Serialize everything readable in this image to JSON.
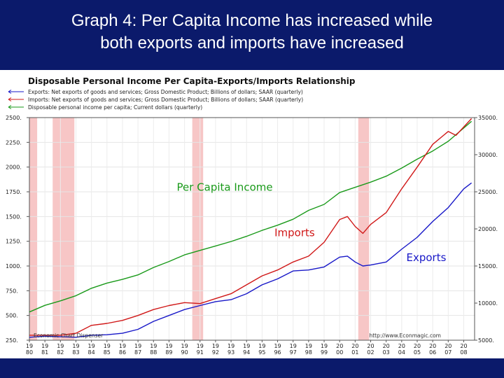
{
  "slide": {
    "title_line1": "Graph 4:  Per Capita Income has increased while",
    "title_line2": "both exports and imports have increased"
  },
  "chart_data": {
    "type": "line",
    "title": "Disposable Personal Income Per Capita-Exports/Imports Relationship",
    "legend": [
      "Exports: Net exports of goods and services; Gross Domestic Product; Billions of dollars; SAAR (quarterly)",
      "Imports: Net exports of goods and services; Gross Domestic Product; Billions of dollars; SAAR (quarterly)",
      "Disposable personal income per capita; Current dollars (quarterly)"
    ],
    "left_axis": {
      "ylim": [
        250,
        2500
      ],
      "ticks": [
        "250.",
        "500.",
        "750.",
        "1000.",
        "1250.",
        "1500.",
        "1750.",
        "2000.",
        "2250.",
        "2500."
      ]
    },
    "right_axis": {
      "ylim": [
        5000,
        35000
      ],
      "ticks": [
        "5000.",
        "10000.",
        "15000.",
        "20000.",
        "25000.",
        "30000.",
        "35000."
      ]
    },
    "x_ticks": [
      {
        "top": "19",
        "bottom": "80"
      },
      {
        "top": "19",
        "bottom": "81"
      },
      {
        "top": "19",
        "bottom": "82"
      },
      {
        "top": "19",
        "bottom": "83"
      },
      {
        "top": "19",
        "bottom": "84"
      },
      {
        "top": "19",
        "bottom": "85"
      },
      {
        "top": "19",
        "bottom": "86"
      },
      {
        "top": "19",
        "bottom": "87"
      },
      {
        "top": "19",
        "bottom": "88"
      },
      {
        "top": "19",
        "bottom": "89"
      },
      {
        "top": "19",
        "bottom": "90"
      },
      {
        "top": "19",
        "bottom": "91"
      },
      {
        "top": "19",
        "bottom": "92"
      },
      {
        "top": "19",
        "bottom": "93"
      },
      {
        "top": "19",
        "bottom": "94"
      },
      {
        "top": "19",
        "bottom": "95"
      },
      {
        "top": "19",
        "bottom": "96"
      },
      {
        "top": "19",
        "bottom": "97"
      },
      {
        "top": "19",
        "bottom": "98"
      },
      {
        "top": "19",
        "bottom": "99"
      },
      {
        "top": "20",
        "bottom": "00"
      },
      {
        "top": "20",
        "bottom": "01"
      },
      {
        "top": "20",
        "bottom": "02"
      },
      {
        "top": "20",
        "bottom": "03"
      },
      {
        "top": "20",
        "bottom": "04"
      },
      {
        "top": "20",
        "bottom": "05"
      },
      {
        "top": "20",
        "bottom": "06"
      },
      {
        "top": "20",
        "bottom": "07"
      },
      {
        "top": "20",
        "bottom": "08"
      }
    ],
    "x_range": [
      1980,
      2008.7
    ],
    "recessions": [
      [
        1980.0,
        1980.5
      ],
      [
        1981.5,
        1982.9
      ],
      [
        1990.5,
        1991.2
      ],
      [
        2001.2,
        2001.9
      ]
    ],
    "series": [
      {
        "label": "Per Capita Income",
        "axis": "right",
        "color": "#1a9a1a",
        "x": [
          1980,
          1981,
          1982,
          1983,
          1984,
          1985,
          1986,
          1987,
          1988,
          1989,
          1990,
          1991,
          1992,
          1993,
          1994,
          1995,
          1996,
          1997,
          1998,
          1999,
          2000,
          2001,
          2002,
          2003,
          2004,
          2005,
          2006,
          2007,
          2008.5
        ],
        "values": [
          8800,
          9700,
          10300,
          11000,
          12000,
          12700,
          13200,
          13800,
          14800,
          15600,
          16500,
          17100,
          17700,
          18300,
          19000,
          19800,
          20500,
          21300,
          22500,
          23300,
          24900,
          25600,
          26300,
          27100,
          28200,
          29400,
          30500,
          31800,
          34500
        ]
      },
      {
        "label": "Imports",
        "axis": "left",
        "color": "#d01818",
        "x": [
          1980,
          1981,
          1982,
          1983,
          1984,
          1985,
          1986,
          1987,
          1988,
          1989,
          1990,
          1991,
          1992,
          1993,
          1994,
          1995,
          1996,
          1997,
          1998,
          1999,
          2000,
          2000.5,
          2001,
          2001.5,
          2002,
          2003,
          2004,
          2005,
          2006,
          2007,
          2007.5,
          2008.5
        ],
        "values": [
          300,
          300,
          300,
          320,
          400,
          420,
          450,
          500,
          560,
          600,
          630,
          620,
          670,
          720,
          810,
          900,
          960,
          1040,
          1100,
          1240,
          1470,
          1500,
          1400,
          1330,
          1420,
          1540,
          1780,
          2000,
          2230,
          2360,
          2320,
          2490
        ]
      },
      {
        "label": "Exports",
        "axis": "left",
        "color": "#1818c8",
        "x": [
          1980,
          1981,
          1982,
          1983,
          1984,
          1985,
          1986,
          1987,
          1988,
          1989,
          1990,
          1991,
          1992,
          1993,
          1994,
          1995,
          1996,
          1997,
          1998,
          1999,
          2000,
          2000.5,
          2001,
          2001.5,
          2002,
          2003,
          2004,
          2005,
          2006,
          2007,
          2008,
          2008.5
        ],
        "values": [
          280,
          290,
          285,
          280,
          300,
          305,
          320,
          360,
          440,
          500,
          560,
          600,
          640,
          660,
          720,
          810,
          870,
          950,
          960,
          990,
          1090,
          1100,
          1040,
          1000,
          1010,
          1040,
          1170,
          1290,
          1450,
          1590,
          1780,
          1840
        ]
      }
    ],
    "annotations": [
      {
        "text": "Per Capita Income",
        "x": 1989.5,
        "axis": "left",
        "y": 1760,
        "color": "#1a9a1a"
      },
      {
        "text": "Imports",
        "x": 1995.8,
        "axis": "left",
        "y": 1300,
        "color": "#d01818"
      },
      {
        "text": "Exports",
        "x": 2004.3,
        "axis": "left",
        "y": 1050,
        "color": "#1818c8"
      }
    ],
    "footer_left": "Economic Chart Dispenser",
    "footer_right": "http://www.Econmagic.com"
  }
}
